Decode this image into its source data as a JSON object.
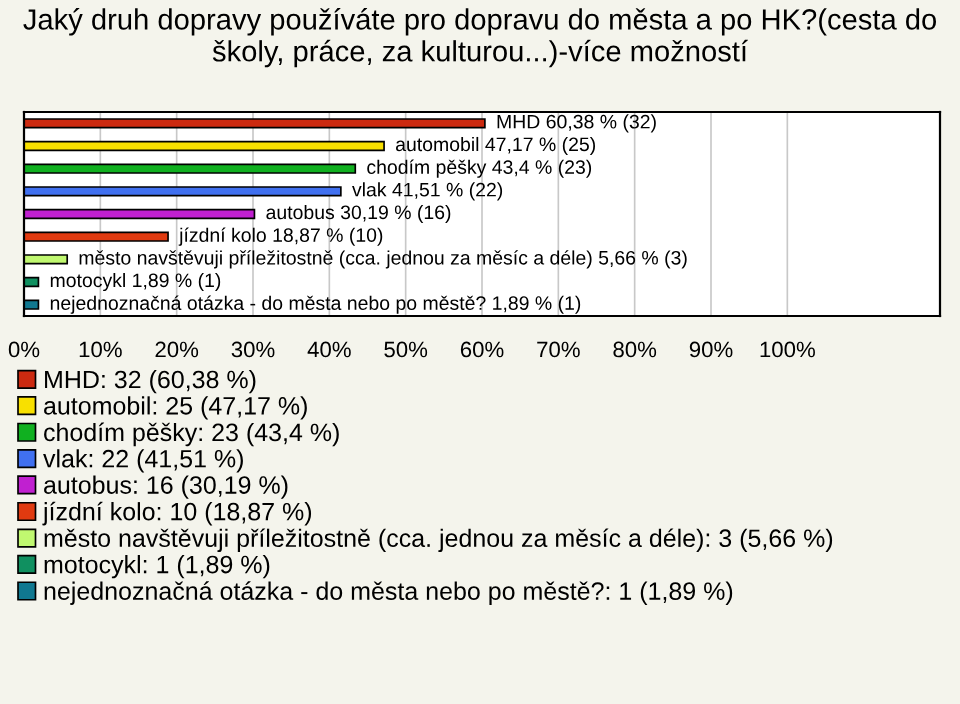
{
  "chart_data": {
    "type": "bar",
    "orientation": "horizontal",
    "title": "Jaký druh dopravy používáte pro dopravu do města a po HK?(cesta do školy, práce, za kulturou...)-více možností",
    "categories": [
      null,
      null,
      null,
      null,
      null,
      null,
      null,
      null,
      null
    ],
    "series": [
      {
        "name": "MHD: 32 (60,38 %)",
        "color": "#cc2a10",
        "values": [
          60.38,
          null,
          null,
          null,
          null,
          null,
          null,
          null,
          null
        ],
        "value_labels": [
          "MHD 60,38 % (32)",
          null,
          null,
          null,
          null,
          null,
          null,
          null,
          null
        ]
      },
      {
        "name": "automobil: 25 (47,17 %)",
        "color": "#f8e000",
        "values": [
          null,
          47.17,
          null,
          null,
          null,
          null,
          null,
          null,
          null
        ],
        "value_labels": [
          null,
          "automobil 47,17 % (25)",
          null,
          null,
          null,
          null,
          null,
          null,
          null
        ]
      },
      {
        "name": "chodím pěšky: 23 (43,4 %)",
        "color": "#10b020",
        "values": [
          null,
          null,
          43.4,
          null,
          null,
          null,
          null,
          null,
          null
        ],
        "value_labels": [
          null,
          null,
          "chodím pěšky 43,4 % (23)",
          null,
          null,
          null,
          null,
          null,
          null
        ]
      },
      {
        "name": "vlak: 22 (41,51 %)",
        "color": "#4070f0",
        "values": [
          null,
          null,
          null,
          41.51,
          null,
          null,
          null,
          null,
          null
        ],
        "value_labels": [
          null,
          null,
          null,
          "vlak 41,51 % (22)",
          null,
          null,
          null,
          null,
          null
        ]
      },
      {
        "name": "autobus: 16 (30,19 %)",
        "color": "#c020d0",
        "values": [
          null,
          null,
          null,
          null,
          30.19,
          null,
          null,
          null,
          null
        ],
        "value_labels": [
          null,
          null,
          null,
          null,
          "autobus 30,19 % (16)",
          null,
          null,
          null,
          null
        ]
      },
      {
        "name": "jízdní kolo: 10 (18,87 %)",
        "color": "#e03a10",
        "values": [
          null,
          null,
          null,
          null,
          null,
          18.87,
          null,
          null,
          null
        ],
        "value_labels": [
          null,
          null,
          null,
          null,
          null,
          "jízdní kolo 18,87 % (10)",
          null,
          null,
          null
        ]
      },
      {
        "name": "město navštěvuji příležitostně (cca. jednou za měsíc a déle): 3 (5,66 %)",
        "color": "#c0f870",
        "values": [
          null,
          null,
          null,
          null,
          null,
          null,
          5.66,
          null,
          null
        ],
        "value_labels": [
          null,
          null,
          null,
          null,
          null,
          null,
          "město navštěvuji příležitostně (cca. jednou za měsíc a déle) 5,66 % (3)",
          null,
          null
        ]
      },
      {
        "name": "motocykl: 1 (1,89 %)",
        "color": "#109060",
        "values": [
          null,
          null,
          null,
          null,
          null,
          null,
          null,
          1.89,
          null
        ],
        "value_labels": [
          null,
          null,
          null,
          null,
          null,
          null,
          null,
          "motocykl 1,89 % (1)",
          null
        ]
      },
      {
        "name": "nejednoznačná otázka - do města nebo po městě?: 1 (1,89 %)",
        "color": "#107890",
        "values": [
          null,
          null,
          null,
          null,
          null,
          null,
          null,
          null,
          1.89
        ],
        "value_labels": [
          null,
          null,
          null,
          null,
          null,
          null,
          null,
          null,
          "nejednoznačná otázka - do města nebo po městě? 1,89 % (1)"
        ]
      }
    ],
    "xlim": [
      0,
      120
    ],
    "xticks": [
      {
        "value": 0,
        "label": "0%"
      },
      {
        "value": 10,
        "label": "10%"
      },
      {
        "value": 20,
        "label": "20%"
      },
      {
        "value": 30,
        "label": "30%"
      },
      {
        "value": 40,
        "label": "40%"
      },
      {
        "value": 50,
        "label": "50%"
      },
      {
        "value": 60,
        "label": "60%"
      },
      {
        "value": 70,
        "label": "70%"
      },
      {
        "value": 80,
        "label": "80%"
      },
      {
        "value": 90,
        "label": "90%"
      },
      {
        "value": 100,
        "label": "100%"
      }
    ],
    "grid": "x",
    "legend": "bottom"
  }
}
